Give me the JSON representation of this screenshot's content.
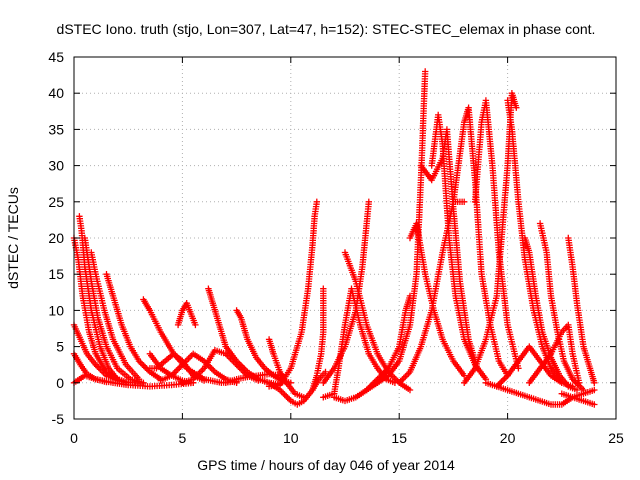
{
  "chart_data": {
    "type": "scatter",
    "title": "dSTEC Iono. truth (stjo, Lon=307, Lat=47, h=152): STEC-STEC_elemax in phase cont.",
    "xlabel": "GPS time / hours of day 046 of year 2014",
    "ylabel": "dSTEC  / TECUs",
    "xlim": [
      0,
      25
    ],
    "ylim": [
      -5,
      45
    ],
    "xticks": [
      "0",
      "5",
      "10",
      "15",
      "20",
      "25"
    ],
    "yticks": [
      "-5",
      "0",
      "5",
      "10",
      "15",
      "20",
      "25",
      "30",
      "35",
      "40",
      "45"
    ],
    "grid": true,
    "marker": "+",
    "color": "#ff0000",
    "arcs": [
      {
        "x": [
          0.0,
          0.2,
          0.4,
          0.7,
          1.0,
          1.5,
          2.0,
          2.5,
          3.0
        ],
        "y": [
          20.0,
          17.0,
          12.0,
          7.0,
          4.0,
          1.5,
          0.5,
          0.0,
          0.2
        ]
      },
      {
        "x": [
          0.0,
          0.3,
          0.6,
          1.0,
          1.5,
          2.0,
          2.5
        ],
        "y": [
          8.0,
          6.0,
          4.0,
          2.5,
          1.0,
          0.3,
          0.0
        ]
      },
      {
        "x": [
          0.0,
          0.3,
          0.6,
          1.0,
          1.5
        ],
        "y": [
          4.0,
          2.5,
          1.2,
          0.5,
          0.1
        ]
      },
      {
        "x": [
          0.0,
          0.5,
          1.0,
          1.8,
          2.5,
          3.5,
          4.5,
          5.5
        ],
        "y": [
          0.0,
          1.0,
          0.5,
          0.0,
          -0.3,
          -0.5,
          -0.3,
          0.0
        ]
      },
      {
        "x": [
          0.25,
          0.35,
          0.5,
          0.8,
          1.2,
          1.6,
          2.0,
          2.5
        ],
        "y": [
          23.0,
          21.0,
          16.0,
          10.0,
          5.0,
          2.0,
          0.5,
          0.0
        ]
      },
      {
        "x": [
          0.5,
          0.6,
          0.8,
          1.1,
          1.5,
          2.0,
          2.6,
          3.2
        ],
        "y": [
          20.0,
          18.0,
          14.0,
          9.0,
          5.0,
          2.0,
          0.5,
          0.0
        ]
      },
      {
        "x": [
          0.8,
          1.0,
          1.4,
          1.8,
          2.4,
          3.0
        ],
        "y": [
          18.0,
          15.0,
          10.0,
          6.0,
          2.5,
          0.5
        ]
      },
      {
        "x": [
          1.5,
          1.8,
          2.2,
          2.6,
          3.0,
          3.5,
          4.0
        ],
        "y": [
          15.0,
          12.0,
          8.0,
          5.0,
          3.0,
          1.5,
          0.5
        ]
      },
      {
        "x": [
          3.2,
          3.5,
          4.0,
          4.6,
          5.2,
          6.0,
          6.8,
          7.5
        ],
        "y": [
          11.5,
          10.0,
          7.0,
          4.0,
          2.0,
          0.5,
          0.0,
          0.2
        ]
      },
      {
        "x": [
          3.5,
          4.0,
          4.5,
          5.0,
          5.5
        ],
        "y": [
          4.0,
          2.0,
          1.0,
          0.3,
          0.0
        ]
      },
      {
        "x": [
          3.5,
          3.8,
          4.2,
          4.6,
          5.0,
          5.5,
          6.0
        ],
        "y": [
          2.0,
          2.0,
          3.0,
          4.0,
          3.0,
          1.0,
          0.3
        ]
      },
      {
        "x": [
          4.0,
          4.5,
          5.0,
          5.5,
          6.0,
          6.5,
          7.0,
          7.5
        ],
        "y": [
          0.3,
          1.0,
          2.5,
          4.0,
          3.0,
          1.5,
          0.5,
          0.0
        ]
      },
      {
        "x": [
          4.8,
          5.0,
          5.2,
          5.6
        ],
        "y": [
          8.0,
          10.0,
          11.0,
          8.0
        ]
      },
      {
        "x": [
          5.0,
          5.5,
          6.0,
          6.5,
          7.0,
          7.5,
          8.0,
          8.5
        ],
        "y": [
          0.0,
          0.5,
          2.0,
          4.5,
          4.0,
          2.5,
          1.0,
          0.3
        ]
      },
      {
        "x": [
          6.2,
          6.4,
          6.7,
          7.0,
          7.5,
          8.0,
          8.5,
          9.0,
          9.5
        ],
        "y": [
          13.0,
          11.0,
          8.0,
          5.0,
          3.0,
          1.5,
          0.5,
          0.0,
          -0.2
        ]
      },
      {
        "x": [
          7.5,
          7.7,
          8.0,
          8.4,
          8.8,
          9.2,
          9.6,
          10.0
        ],
        "y": [
          10.0,
          9.0,
          6.0,
          3.5,
          2.0,
          1.0,
          0.3,
          0.0
        ]
      },
      {
        "x": [
          7.0,
          7.5,
          8.0,
          8.5,
          9.0,
          9.5
        ],
        "y": [
          0.0,
          0.5,
          0.8,
          1.0,
          1.2,
          1.0
        ]
      },
      {
        "x": [
          9.0,
          9.2,
          9.5,
          9.8,
          10.2,
          10.6
        ],
        "y": [
          6.0,
          4.0,
          1.5,
          0.0,
          -1.5,
          -2.0
        ]
      },
      {
        "x": [
          8.5,
          9.0,
          9.5,
          10.0,
          10.3,
          10.6,
          11.0,
          11.3,
          11.6
        ],
        "y": [
          0.5,
          0.0,
          -1.0,
          -2.5,
          -3.0,
          -2.5,
          -1.0,
          0.5,
          1.5
        ]
      },
      {
        "x": [
          9.0,
          9.5,
          10.0,
          10.5,
          10.8,
          11.0,
          11.1,
          11.2
        ],
        "y": [
          -0.5,
          -0.3,
          2.0,
          7.0,
          13.0,
          19.0,
          23.0,
          25.0
        ]
      },
      {
        "x": [
          11.0,
          11.2,
          11.4,
          11.5,
          11.5
        ],
        "y": [
          -1.0,
          1.0,
          4.0,
          7.0,
          13.0
        ]
      },
      {
        "x": [
          11.5,
          12.0,
          12.5,
          13.0,
          13.3,
          13.5,
          13.6
        ],
        "y": [
          0.0,
          2.0,
          5.0,
          10.0,
          16.0,
          22.0,
          25.0
        ]
      },
      {
        "x": [
          11.5,
          12.0,
          12.2,
          12.5,
          12.8,
          13.2,
          13.6,
          14.0,
          14.4,
          14.8
        ],
        "y": [
          -2.0,
          -1.5,
          2.0,
          8.0,
          13.0,
          8.0,
          4.0,
          2.0,
          0.5,
          0.0
        ]
      },
      {
        "x": [
          12.5,
          13.0,
          13.5,
          14.0,
          14.5,
          15.0,
          15.5
        ],
        "y": [
          18.0,
          14.0,
          8.0,
          4.0,
          1.5,
          0.0,
          -1.0
        ]
      },
      {
        "x": [
          12.0,
          12.5,
          13.0,
          13.5,
          14.0,
          14.5
        ],
        "y": [
          -2.0,
          -2.5,
          -2.0,
          -1.0,
          0.5,
          2.0
        ]
      },
      {
        "x": [
          14.0,
          14.5,
          15.0,
          15.5,
          15.8,
          16.0,
          16.2
        ],
        "y": [
          0.0,
          1.0,
          3.0,
          8.0,
          15.0,
          28.0,
          43.0
        ]
      },
      {
        "x": [
          13.5,
          14.0,
          14.5,
          15.0,
          15.3,
          15.5
        ],
        "y": [
          -1.0,
          0.0,
          2.0,
          5.0,
          10.0,
          12.0
        ]
      },
      {
        "x": [
          15.5,
          15.8,
          16.2,
          16.6,
          17.0,
          17.5,
          18.0
        ],
        "y": [
          20.0,
          22.0,
          15.0,
          10.0,
          6.0,
          3.0,
          1.0
        ]
      },
      {
        "x": [
          16.5,
          16.8,
          17.0,
          17.3,
          17.6,
          18.0,
          18.5,
          19.0
        ],
        "y": [
          30.0,
          37.0,
          33.0,
          20.0,
          12.0,
          6.0,
          2.5,
          0.5
        ]
      },
      {
        "x": [
          16.0,
          16.5,
          17.0,
          17.2,
          17.5,
          17.8,
          18.2,
          18.6
        ],
        "y": [
          30.0,
          28.0,
          31.0,
          35.0,
          24.0,
          14.0,
          6.0,
          2.0
        ]
      },
      {
        "x": [
          15.0,
          15.5,
          16.0,
          16.5,
          17.0,
          17.5,
          18.0
        ],
        "y": [
          0.0,
          1.5,
          5.0,
          10.0,
          18.0,
          25.0,
          25.0
        ]
      },
      {
        "x": [
          17.5,
          18.0,
          18.2,
          18.5,
          18.8,
          19.2,
          19.6,
          20.0
        ],
        "y": [
          25.0,
          36.0,
          38.0,
          28.0,
          15.0,
          8.0,
          3.0,
          1.0
        ]
      },
      {
        "x": [
          18.5,
          18.8,
          19.0,
          19.3,
          19.6,
          20.0,
          20.5
        ],
        "y": [
          25.0,
          36.0,
          39.0,
          30.0,
          18.0,
          8.0,
          2.0
        ]
      },
      {
        "x": [
          18.0,
          18.5,
          19.0,
          19.5,
          20.0,
          20.2,
          20.4
        ],
        "y": [
          0.0,
          2.0,
          6.0,
          12.0,
          30.0,
          40.0,
          38.0
        ]
      },
      {
        "x": [
          20.0,
          20.2,
          20.5,
          20.8,
          21.2,
          21.6,
          22.0,
          22.5
        ],
        "y": [
          39.0,
          35.0,
          25.0,
          17.0,
          10.0,
          5.0,
          2.0,
          0.0
        ]
      },
      {
        "x": [
          20.8,
          21.0,
          21.3,
          21.6,
          22.0,
          22.4,
          22.8,
          23.2
        ],
        "y": [
          20.0,
          18.0,
          12.0,
          7.0,
          3.5,
          1.0,
          -0.5,
          -1.0
        ]
      },
      {
        "x": [
          21.5,
          21.8,
          22.0,
          22.3,
          22.6,
          23.0,
          23.5
        ],
        "y": [
          22.0,
          18.0,
          12.0,
          7.0,
          3.0,
          0.5,
          -1.0
        ]
      },
      {
        "x": [
          22.8,
          23.0,
          23.2,
          23.5,
          23.8,
          24.0
        ],
        "y": [
          20.0,
          16.0,
          11.0,
          5.0,
          2.0,
          0.0
        ]
      },
      {
        "x": [
          19.0,
          19.5,
          20.0,
          20.5,
          21.0,
          21.5,
          22.0,
          22.5,
          23.0,
          23.5,
          24.0
        ],
        "y": [
          0.0,
          -0.5,
          -1.0,
          -1.5,
          -2.0,
          -2.5,
          -3.0,
          -3.0,
          -2.0,
          -1.5,
          -1.0
        ]
      },
      {
        "x": [
          19.5,
          20.0,
          20.5,
          21.0,
          21.5,
          22.0,
          22.5,
          23.0
        ],
        "y": [
          -0.5,
          1.0,
          3.0,
          5.0,
          3.0,
          1.0,
          0.0,
          -0.5
        ]
      },
      {
        "x": [
          21.0,
          21.5,
          22.0,
          22.5,
          22.8,
          23.0,
          23.3
        ],
        "y": [
          0.0,
          2.0,
          4.0,
          7.0,
          8.0,
          4.0,
          0.0
        ]
      },
      {
        "x": [
          22.5,
          23.0,
          23.5,
          24.0
        ],
        "y": [
          -1.5,
          -2.0,
          -2.5,
          -3.0
        ]
      }
    ]
  }
}
